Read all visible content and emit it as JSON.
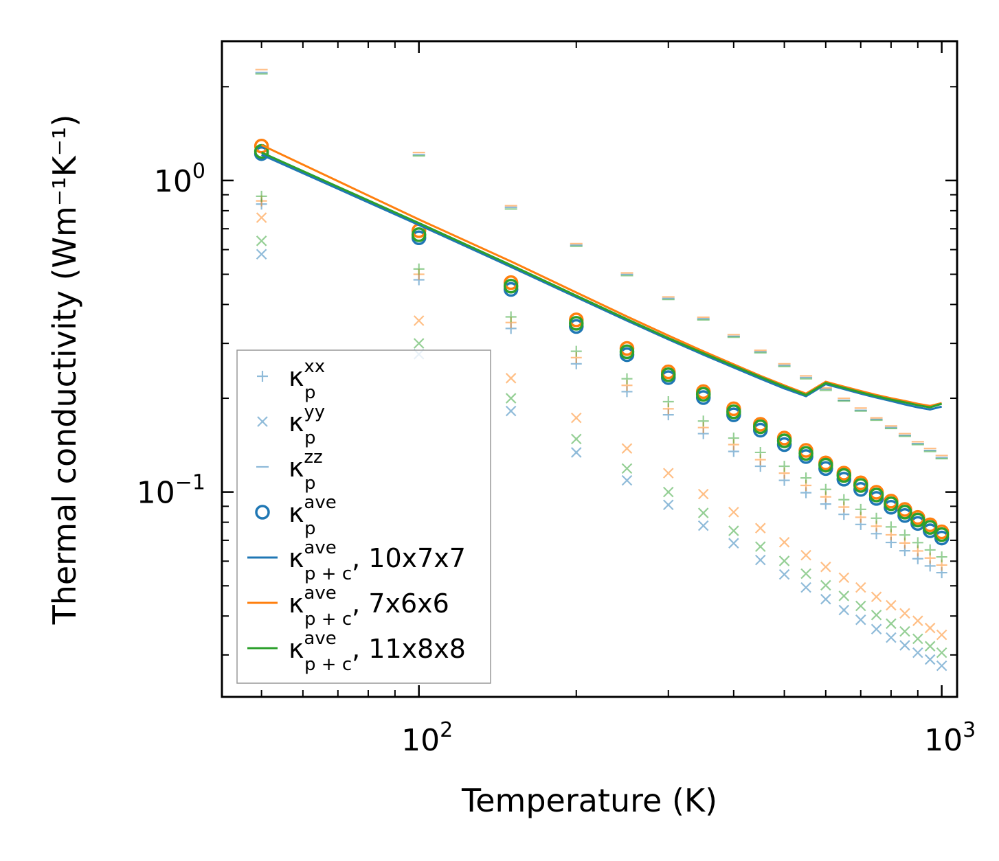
{
  "chart_data": {
    "type": "scatter",
    "title": "",
    "xlabel": "Temperature (K)",
    "ylabel": "Thermal conductivity (Wm⁻¹K⁻¹)",
    "xscale": "log",
    "yscale": "log",
    "xlim": [
      42,
      1070
    ],
    "ylim": [
      0.022,
      2.8
    ],
    "xticks": [
      {
        "base": "10",
        "exp": "2",
        "value": 100
      },
      {
        "base": "10",
        "exp": "3",
        "value": 1000
      }
    ],
    "yticks": [
      {
        "base": "10",
        "exp": "−1",
        "value": 0.1
      },
      {
        "base": "10",
        "exp": "0",
        "value": 1
      }
    ],
    "grid": false,
    "legend_position": "lower-left",
    "colors": {
      "blue": "#1f77b4",
      "orange": "#ff7f0e",
      "green": "#2ca02c"
    },
    "x": [
      50,
      100,
      150,
      200,
      250,
      300,
      350,
      400,
      450,
      500,
      550,
      600,
      650,
      700,
      750,
      800,
      850,
      900,
      950,
      1000
    ],
    "series": [
      {
        "name": "kxx 10x7x7",
        "component": "xx",
        "marker": "plus",
        "color": "blue",
        "values": [
          0.84,
          0.48,
          0.335,
          0.258,
          0.21,
          0.177,
          0.154,
          0.135,
          0.121,
          0.109,
          0.0995,
          0.0915,
          0.0848,
          0.0787,
          0.0735,
          0.0689,
          0.0648,
          0.0611,
          0.0579,
          0.0551
        ]
      },
      {
        "name": "kxx 7x6x6",
        "component": "xx",
        "marker": "plus",
        "color": "orange",
        "values": [
          0.86,
          0.5,
          0.35,
          0.27,
          0.22,
          0.185,
          0.161,
          0.142,
          0.127,
          0.115,
          0.105,
          0.0965,
          0.0895,
          0.083,
          0.0777,
          0.0729,
          0.0686,
          0.0647,
          0.0614,
          0.0583
        ]
      },
      {
        "name": "kxx 11x8x8",
        "component": "xx",
        "marker": "plus",
        "color": "green",
        "values": [
          0.89,
          0.52,
          0.365,
          0.283,
          0.231,
          0.195,
          0.169,
          0.149,
          0.134,
          0.121,
          0.111,
          0.102,
          0.0945,
          0.088,
          0.0824,
          0.0773,
          0.0728,
          0.0688,
          0.0652,
          0.0619
        ]
      },
      {
        "name": "kyy 10x7x7",
        "component": "yy",
        "marker": "x",
        "color": "blue",
        "values": [
          0.58,
          0.277,
          0.182,
          0.134,
          0.109,
          0.091,
          0.078,
          0.0685,
          0.0605,
          0.0544,
          0.0494,
          0.0453,
          0.0418,
          0.0389,
          0.0363,
          0.0341,
          0.0322,
          0.0305,
          0.029,
          0.0277
        ]
      },
      {
        "name": "kyy 7x6x6",
        "component": "yy",
        "marker": "x",
        "color": "orange",
        "values": [
          0.76,
          0.355,
          0.232,
          0.173,
          0.138,
          0.115,
          0.0985,
          0.0862,
          0.0766,
          0.069,
          0.0627,
          0.0575,
          0.0531,
          0.0494,
          0.0461,
          0.0433,
          0.0408,
          0.0386,
          0.0366,
          0.0348
        ]
      },
      {
        "name": "kyy 11x8x8",
        "component": "yy",
        "marker": "x",
        "color": "green",
        "values": [
          0.64,
          0.3,
          0.2,
          0.148,
          0.119,
          0.1,
          0.0857,
          0.0751,
          0.0668,
          0.0601,
          0.0547,
          0.0502,
          0.0464,
          0.0431,
          0.0403,
          0.0378,
          0.0357,
          0.0338,
          0.032,
          0.0305
        ]
      },
      {
        "name": "kzz 10x7x7",
        "component": "zz",
        "marker": "dash",
        "color": "blue",
        "values": [
          2.22,
          1.21,
          0.82,
          0.62,
          0.499,
          0.418,
          0.36,
          0.316,
          0.282,
          0.255,
          0.233,
          0.214,
          0.197,
          0.183,
          0.171,
          0.161,
          0.152,
          0.143,
          0.136,
          0.129
        ]
      },
      {
        "name": "kzz 7x6x6",
        "component": "zz",
        "marker": "dash",
        "color": "orange",
        "values": [
          2.27,
          1.23,
          0.83,
          0.627,
          0.505,
          0.423,
          0.364,
          0.32,
          0.285,
          0.258,
          0.236,
          0.216,
          0.2,
          0.186,
          0.173,
          0.163,
          0.154,
          0.145,
          0.138,
          0.131
        ]
      },
      {
        "name": "kzz 11x8x8",
        "component": "zz",
        "marker": "dash",
        "color": "green",
        "values": [
          2.2,
          1.2,
          0.81,
          0.615,
          0.495,
          0.415,
          0.357,
          0.314,
          0.28,
          0.253,
          0.231,
          0.212,
          0.196,
          0.182,
          0.17,
          0.16,
          0.151,
          0.142,
          0.135,
          0.128
        ]
      },
      {
        "name": "kave 10x7x7",
        "component": "ave",
        "marker": "circle",
        "color": "blue",
        "values": [
          1.22,
          0.655,
          0.447,
          0.34,
          0.276,
          0.233,
          0.201,
          0.177,
          0.158,
          0.142,
          0.13,
          0.119,
          0.11,
          0.102,
          0.0954,
          0.0894,
          0.0841,
          0.0793,
          0.0751,
          0.0712
        ]
      },
      {
        "name": "kave 7x6x6",
        "component": "ave",
        "marker": "circle",
        "color": "orange",
        "values": [
          1.29,
          0.69,
          0.47,
          0.357,
          0.289,
          0.243,
          0.21,
          0.185,
          0.165,
          0.149,
          0.136,
          0.124,
          0.115,
          0.107,
          0.0998,
          0.0935,
          0.0879,
          0.0829,
          0.0785,
          0.0745
        ]
      },
      {
        "name": "kave 11x8x8",
        "component": "ave",
        "marker": "circle",
        "color": "green",
        "values": [
          1.24,
          0.67,
          0.458,
          0.348,
          0.282,
          0.238,
          0.206,
          0.181,
          0.162,
          0.146,
          0.133,
          0.122,
          0.113,
          0.105,
          0.0978,
          0.0917,
          0.0862,
          0.0813,
          0.077,
          0.073
        ]
      },
      {
        "name": "kp+c 10x7x7",
        "marker": "line",
        "color": "blue",
        "values": [
          1.21,
          0.72,
          0.528,
          0.422,
          0.355,
          0.309,
          0.276,
          0.251,
          0.231,
          0.215,
          0.203,
          0.222,
          0.214,
          0.207,
          0.201,
          0.196,
          0.191,
          0.187,
          0.184,
          0.188
        ]
      },
      {
        "name": "kp+c 7x6x6",
        "marker": "line",
        "color": "orange",
        "values": [
          1.3,
          0.75,
          0.55,
          0.437,
          0.366,
          0.318,
          0.283,
          0.257,
          0.236,
          0.22,
          0.207,
          0.226,
          0.218,
          0.211,
          0.205,
          0.2,
          0.196,
          0.192,
          0.189,
          0.193
        ]
      },
      {
        "name": "kp+c 11x8x8",
        "marker": "line",
        "color": "green",
        "values": [
          1.23,
          0.73,
          0.535,
          0.427,
          0.359,
          0.312,
          0.279,
          0.254,
          0.234,
          0.218,
          0.205,
          0.224,
          0.216,
          0.209,
          0.203,
          0.198,
          0.194,
          0.19,
          0.187,
          0.192
        ]
      }
    ],
    "legend": [
      {
        "marker": "plus",
        "color": "blue",
        "base": "κ",
        "sub": "p",
        "sup": "xx",
        "suffix": ""
      },
      {
        "marker": "x",
        "color": "blue",
        "base": "κ",
        "sub": "p",
        "sup": "yy",
        "suffix": ""
      },
      {
        "marker": "dash",
        "color": "blue",
        "base": "κ",
        "sub": "p",
        "sup": "zz",
        "suffix": ""
      },
      {
        "marker": "circle",
        "color": "blue",
        "base": "κ",
        "sub": "p",
        "sup": "ave",
        "suffix": ""
      },
      {
        "marker": "line",
        "color": "blue",
        "base": "κ",
        "sub": "p + c",
        "sup": "ave",
        "suffix": ", 10x7x7"
      },
      {
        "marker": "line",
        "color": "orange",
        "base": "κ",
        "sub": "p + c",
        "sup": "ave",
        "suffix": ", 7x6x6"
      },
      {
        "marker": "line",
        "color": "green",
        "base": "κ",
        "sub": "p + c",
        "sup": "ave",
        "suffix": ", 11x8x8"
      }
    ]
  }
}
